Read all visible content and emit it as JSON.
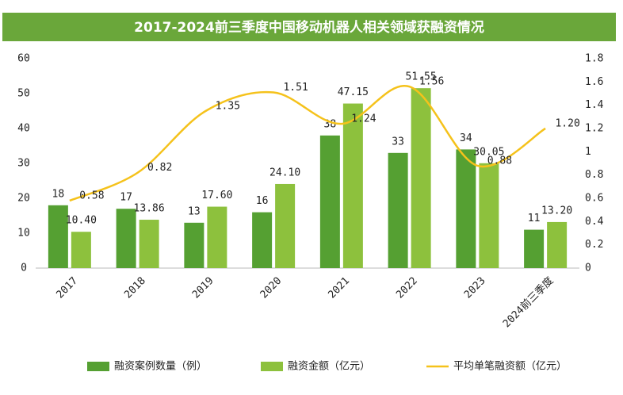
{
  "chart_data": {
    "type": "bar-line",
    "title": "2017-2024前三季度中国移动机器人相关领域获融资情况",
    "categories": [
      "2017",
      "2018",
      "2019",
      "2020",
      "2021",
      "2022",
      "2023",
      "2024前三季度"
    ],
    "series": [
      {
        "name": "融资案例数量（例）",
        "type": "bar",
        "color": "#55a032",
        "values": [
          18,
          17,
          13,
          16,
          38,
          33,
          34,
          11
        ]
      },
      {
        "name": "融资金额（亿元）",
        "type": "bar",
        "color": "#8dc13d",
        "values": [
          10.4,
          13.86,
          17.6,
          24.1,
          47.15,
          51.55,
          30.05,
          13.2
        ],
        "value_labels": [
          "10.40",
          "13.86",
          "17.60",
          "24.10",
          "47.15",
          "51.55",
          "30.05",
          "13.20"
        ]
      },
      {
        "name": "平均单笔融资额（亿元）",
        "type": "line",
        "axis": "y2",
        "color": "#f5c21b",
        "values": [
          0.58,
          0.82,
          1.35,
          1.51,
          1.24,
          1.56,
          0.88,
          1.2
        ],
        "value_labels": [
          "0.58",
          "0.82",
          "1.35",
          "1.51",
          "1.24",
          "1.56",
          "0.88",
          "1.20"
        ]
      }
    ],
    "ylim": [
      0,
      60
    ],
    "yticks": [
      0,
      10,
      20,
      30,
      40,
      50,
      60
    ],
    "y2lim": [
      0,
      1.8
    ],
    "y2ticks": [
      0,
      0.2,
      0.4,
      0.6,
      0.8,
      1,
      1.2,
      1.4,
      1.6,
      1.8
    ],
    "grid": false,
    "legend": "bottom"
  }
}
